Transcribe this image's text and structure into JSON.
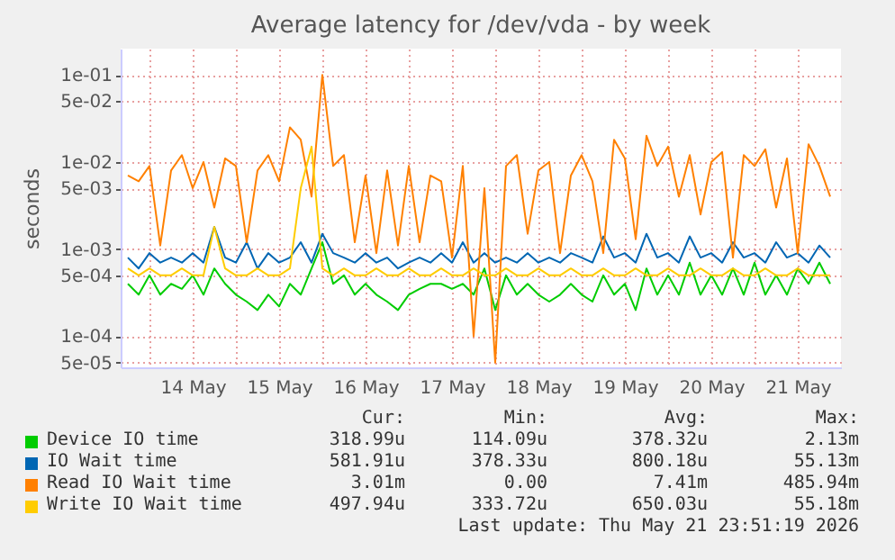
{
  "chart_data": {
    "type": "line",
    "title": "Average latency for /dev/vda - by week",
    "ylabel": "seconds",
    "log": "y",
    "grid": true,
    "legend": "bottom",
    "ylim": [
      4.4e-05,
      0.2
    ],
    "yticks": [
      {
        "value": 0.1,
        "label": "1e-01"
      },
      {
        "value": 0.05,
        "label": "5e-02"
      },
      {
        "value": 0.01,
        "label": "1e-02"
      },
      {
        "value": 0.005,
        "label": "5e-03"
      },
      {
        "value": 0.001,
        "label": "1e-03"
      },
      {
        "value": 0.0005,
        "label": "5e-04"
      },
      {
        "value": 0.0001,
        "label": "1e-04"
      },
      {
        "value": 5e-05,
        "label": "5e-05"
      }
    ],
    "xlim": [
      "2026-05-13T16:00",
      "2026-05-22T00:00"
    ],
    "xticks": [
      {
        "value": "2026-05-14T00:00",
        "label": null
      },
      {
        "value": "2026-05-14T12:00",
        "label": "14 May"
      },
      {
        "value": "2026-05-15T00:00",
        "label": null
      },
      {
        "value": "2026-05-15T12:00",
        "label": "15 May"
      },
      {
        "value": "2026-05-16T00:00",
        "label": null
      },
      {
        "value": "2026-05-16T12:00",
        "label": "16 May"
      },
      {
        "value": "2026-05-17T00:00",
        "label": null
      },
      {
        "value": "2026-05-17T12:00",
        "label": "17 May"
      },
      {
        "value": "2026-05-18T00:00",
        "label": null
      },
      {
        "value": "2026-05-18T12:00",
        "label": "18 May"
      },
      {
        "value": "2026-05-19T00:00",
        "label": null
      },
      {
        "value": "2026-05-19T12:00",
        "label": "19 May"
      },
      {
        "value": "2026-05-20T00:00",
        "label": null
      },
      {
        "value": "2026-05-20T12:00",
        "label": "20 May"
      },
      {
        "value": "2026-05-21T00:00",
        "label": null
      },
      {
        "value": "2026-05-21T12:00",
        "label": "21 May"
      }
    ],
    "x": [
      "2026-05-13T18:00",
      "2026-05-13T21:00",
      "2026-05-14T00:00",
      "2026-05-14T03:00",
      "2026-05-14T06:00",
      "2026-05-14T09:00",
      "2026-05-14T12:00",
      "2026-05-14T15:00",
      "2026-05-14T18:00",
      "2026-05-14T21:00",
      "2026-05-15T00:00",
      "2026-05-15T03:00",
      "2026-05-15T06:00",
      "2026-05-15T09:00",
      "2026-05-15T12:00",
      "2026-05-15T15:00",
      "2026-05-15T18:00",
      "2026-05-15T21:00",
      "2026-05-16T00:00",
      "2026-05-16T03:00",
      "2026-05-16T06:00",
      "2026-05-16T09:00",
      "2026-05-16T12:00",
      "2026-05-16T15:00",
      "2026-05-16T18:00",
      "2026-05-16T21:00",
      "2026-05-17T00:00",
      "2026-05-17T03:00",
      "2026-05-17T06:00",
      "2026-05-17T09:00",
      "2026-05-17T12:00",
      "2026-05-17T15:00",
      "2026-05-17T18:00",
      "2026-05-17T21:00",
      "2026-05-18T00:00",
      "2026-05-18T03:00",
      "2026-05-18T06:00",
      "2026-05-18T09:00",
      "2026-05-18T12:00",
      "2026-05-18T15:00",
      "2026-05-18T18:00",
      "2026-05-18T21:00",
      "2026-05-19T00:00",
      "2026-05-19T03:00",
      "2026-05-19T06:00",
      "2026-05-19T09:00",
      "2026-05-19T12:00",
      "2026-05-19T15:00",
      "2026-05-19T18:00",
      "2026-05-19T21:00",
      "2026-05-20T00:00",
      "2026-05-20T03:00",
      "2026-05-20T06:00",
      "2026-05-20T09:00",
      "2026-05-20T12:00",
      "2026-05-20T15:00",
      "2026-05-20T18:00",
      "2026-05-20T21:00",
      "2026-05-21T00:00",
      "2026-05-21T03:00",
      "2026-05-21T06:00",
      "2026-05-21T09:00",
      "2026-05-21T12:00",
      "2026-05-21T15:00",
      "2026-05-21T18:00",
      "2026-05-21T21:00"
    ],
    "series": [
      {
        "name": "Device IO time",
        "color": "#00cc00",
        "values": [
          0.0004,
          0.0003,
          0.0005,
          0.0003,
          0.0004,
          0.00035,
          0.0005,
          0.0003,
          0.0006,
          0.0004,
          0.0003,
          0.00025,
          0.0002,
          0.0003,
          0.00022,
          0.0004,
          0.0003,
          0.0006,
          0.0012,
          0.0004,
          0.0005,
          0.0003,
          0.0004,
          0.0003,
          0.00025,
          0.0002,
          0.0003,
          0.00035,
          0.0004,
          0.0004,
          0.00035,
          0.0004,
          0.0003,
          0.0006,
          0.0002,
          0.0005,
          0.0003,
          0.0004,
          0.0003,
          0.00025,
          0.0003,
          0.0004,
          0.0003,
          0.00025,
          0.0005,
          0.0003,
          0.0004,
          0.0002,
          0.0006,
          0.0003,
          0.0005,
          0.0003,
          0.0007,
          0.0003,
          0.0005,
          0.0003,
          0.0006,
          0.0003,
          0.0007,
          0.0003,
          0.0005,
          0.0003,
          0.0006,
          0.0004,
          0.0007,
          0.0004
        ]
      },
      {
        "name": "IO Wait time",
        "color": "#0066b3",
        "values": [
          0.0008,
          0.0006,
          0.0009,
          0.0007,
          0.0008,
          0.0007,
          0.0009,
          0.0007,
          0.0018,
          0.0008,
          0.0007,
          0.0012,
          0.0006,
          0.0009,
          0.0007,
          0.0008,
          0.0012,
          0.0007,
          0.0015,
          0.0009,
          0.0008,
          0.0007,
          0.0009,
          0.0007,
          0.0008,
          0.0006,
          0.0007,
          0.0008,
          0.0007,
          0.0009,
          0.0007,
          0.0012,
          0.0007,
          0.0009,
          0.0007,
          0.0008,
          0.0007,
          0.0009,
          0.0007,
          0.0008,
          0.0007,
          0.0009,
          0.0008,
          0.0007,
          0.0014,
          0.0008,
          0.0009,
          0.0007,
          0.0015,
          0.0008,
          0.0009,
          0.0007,
          0.0014,
          0.0008,
          0.0009,
          0.0007,
          0.0012,
          0.0008,
          0.0009,
          0.0007,
          0.0012,
          0.0008,
          0.0009,
          0.0007,
          0.0011,
          0.0008
        ]
      },
      {
        "name": "Read IO Wait time",
        "color": "#ff8000",
        "values": [
          0.007,
          0.006,
          0.009,
          0.0011,
          0.008,
          0.012,
          0.005,
          0.01,
          0.003,
          0.011,
          0.009,
          0.0012,
          0.008,
          0.012,
          0.006,
          0.025,
          0.018,
          0.004,
          0.1,
          0.009,
          0.012,
          0.0012,
          0.007,
          0.0009,
          0.008,
          0.0011,
          0.009,
          0.0012,
          0.007,
          0.006,
          0.0008,
          0.009,
          0.0001,
          0.005,
          5e-05,
          0.009,
          0.012,
          0.0015,
          0.008,
          0.01,
          0.0009,
          0.007,
          0.012,
          0.006,
          0.0009,
          0.018,
          0.011,
          0.0013,
          0.02,
          0.009,
          0.015,
          0.004,
          0.012,
          0.0025,
          0.01,
          0.013,
          0.0008,
          0.012,
          0.009,
          0.014,
          0.003,
          0.011,
          0.0009,
          0.016,
          0.009,
          0.004
        ]
      },
      {
        "name": "Write IO Wait time",
        "color": "#ffcc00",
        "values": [
          0.0006,
          0.0005,
          0.0006,
          0.0005,
          0.0005,
          0.0006,
          0.0005,
          0.0005,
          0.0018,
          0.0006,
          0.0005,
          0.0005,
          0.0006,
          0.0005,
          0.0005,
          0.0006,
          0.005,
          0.015,
          0.0006,
          0.0005,
          0.0006,
          0.0005,
          0.0005,
          0.0006,
          0.0005,
          0.0005,
          0.0006,
          0.0005,
          0.0005,
          0.0006,
          0.0005,
          0.0005,
          0.0006,
          0.0005,
          0.0005,
          0.0006,
          0.0005,
          0.0005,
          0.0006,
          0.0005,
          0.0005,
          0.0006,
          0.0005,
          0.0005,
          0.0006,
          0.0005,
          0.0005,
          0.0006,
          0.0005,
          0.0005,
          0.0006,
          0.0005,
          0.0005,
          0.0006,
          0.0005,
          0.0005,
          0.0006,
          0.0005,
          0.0005,
          0.0006,
          0.0005,
          0.0005,
          0.0006,
          0.0005,
          0.0005,
          0.0005
        ]
      }
    ],
    "annotations": [
      "Cur:",
      "Min:",
      "Avg:",
      "Max:",
      "318.99u",
      "114.09u",
      "378.32u",
      "2.13m",
      "581.91u",
      "378.33u",
      "800.18u",
      "55.13m",
      "3.01m",
      "0.00",
      "7.41m",
      "485.94m",
      "497.94u",
      "333.72u",
      "650.03u",
      "55.18m",
      "Last update: Thu May 21 23:51:19 2026"
    ]
  }
}
